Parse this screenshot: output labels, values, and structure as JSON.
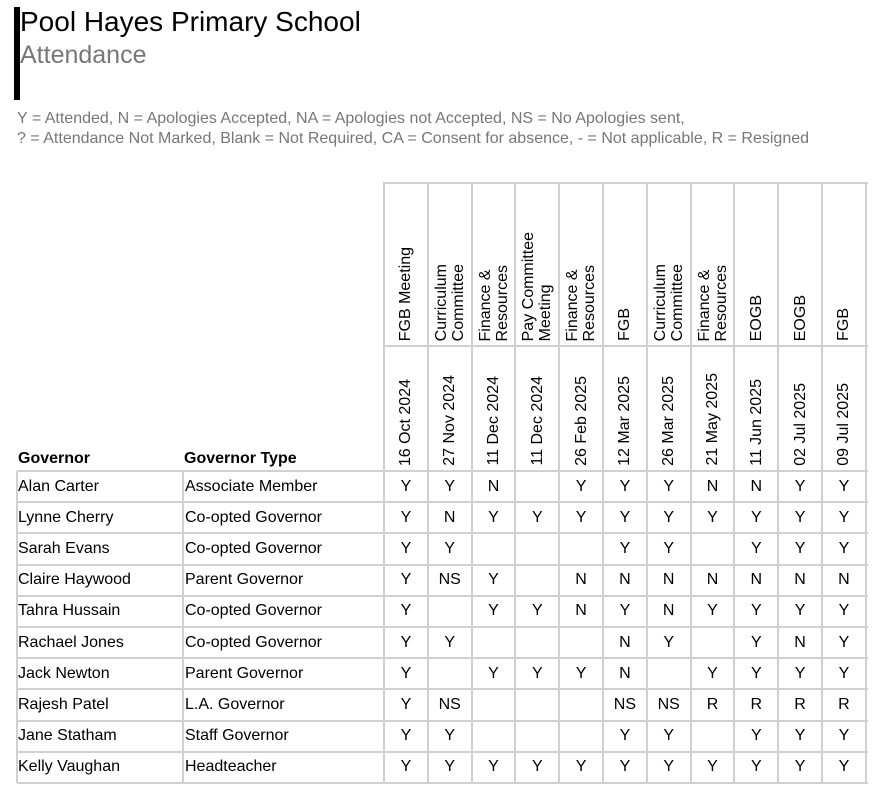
{
  "header": {
    "title": "Pool Hayes Primary School",
    "subtitle": "Attendance"
  },
  "legend": {
    "line1": "Y = Attended, N = Apologies Accepted, NA = Apologies not Accepted, NS = No Apologies sent,",
    "line2": "? = Attendance Not Marked, Blank = Not Required, CA = Consent for absence, - = Not applicable, R = Resigned"
  },
  "table": {
    "columns": {
      "governor": "Governor",
      "type": "Governor Type"
    },
    "meetings": [
      {
        "name": [
          "FGB Meeting"
        ],
        "date": "16 Oct 2024"
      },
      {
        "name": [
          "Curriculum",
          "Committee"
        ],
        "date": "27 Nov 2024"
      },
      {
        "name": [
          "Finance &",
          "Resources"
        ],
        "date": "11 Dec 2024"
      },
      {
        "name": [
          "Pay Committee",
          "Meeting"
        ],
        "date": "11 Dec 2024"
      },
      {
        "name": [
          "Finance &",
          "Resources"
        ],
        "date": "26 Feb 2025"
      },
      {
        "name": [
          "FGB"
        ],
        "date": "12 Mar 2025"
      },
      {
        "name": [
          "Curriculum",
          "Committee"
        ],
        "date": "26 Mar 2025"
      },
      {
        "name": [
          "Finance &",
          "Resources"
        ],
        "date": "21 May 2025"
      },
      {
        "name": [
          "EOGB"
        ],
        "date": "11 Jun 2025"
      },
      {
        "name": [
          "EOGB"
        ],
        "date": "02 Jul 2025"
      },
      {
        "name": [
          "FGB"
        ],
        "date": "09 Jul 2025"
      }
    ],
    "rows": [
      {
        "governor": "Alan Carter",
        "type": "Associate Member",
        "attendance": [
          "Y",
          "Y",
          "N",
          "",
          "Y",
          "Y",
          "Y",
          "N",
          "N",
          "Y",
          "Y"
        ]
      },
      {
        "governor": "Lynne Cherry",
        "type": "Co-opted Governor",
        "attendance": [
          "Y",
          "N",
          "Y",
          "Y",
          "Y",
          "Y",
          "Y",
          "Y",
          "Y",
          "Y",
          "Y"
        ]
      },
      {
        "governor": "Sarah Evans",
        "type": "Co-opted Governor",
        "attendance": [
          "Y",
          "Y",
          "",
          "",
          "",
          "Y",
          "Y",
          "",
          "Y",
          "Y",
          "Y"
        ]
      },
      {
        "governor": "Claire Haywood",
        "type": "Parent Governor",
        "attendance": [
          "Y",
          "NS",
          "Y",
          "",
          "N",
          "N",
          "N",
          "N",
          "N",
          "N",
          "N"
        ]
      },
      {
        "governor": "Tahra Hussain",
        "type": "Co-opted Governor",
        "attendance": [
          "Y",
          "",
          "Y",
          "Y",
          "N",
          "Y",
          "N",
          "Y",
          "Y",
          "Y",
          "Y"
        ]
      },
      {
        "governor": "Rachael Jones",
        "type": "Co-opted Governor",
        "attendance": [
          "Y",
          "Y",
          "",
          "",
          "",
          "N",
          "Y",
          "",
          "Y",
          "N",
          "Y"
        ]
      },
      {
        "governor": "Jack Newton",
        "type": "Parent Governor",
        "attendance": [
          "Y",
          "",
          "Y",
          "Y",
          "Y",
          "N",
          "",
          "Y",
          "Y",
          "Y",
          "Y"
        ]
      },
      {
        "governor": "Rajesh Patel",
        "type": "L.A. Governor",
        "attendance": [
          "Y",
          "NS",
          "",
          "",
          "",
          "NS",
          "NS",
          "R",
          "R",
          "R",
          "R"
        ]
      },
      {
        "governor": "Jane Statham",
        "type": "Staff Governor",
        "attendance": [
          "Y",
          "Y",
          "",
          "",
          "",
          "Y",
          "Y",
          "",
          "Y",
          "Y",
          "Y"
        ]
      },
      {
        "governor": "Kelly Vaughan",
        "type": "Headteacher",
        "attendance": [
          "Y",
          "Y",
          "Y",
          "Y",
          "Y",
          "Y",
          "Y",
          "Y",
          "Y",
          "Y",
          "Y"
        ]
      }
    ]
  }
}
